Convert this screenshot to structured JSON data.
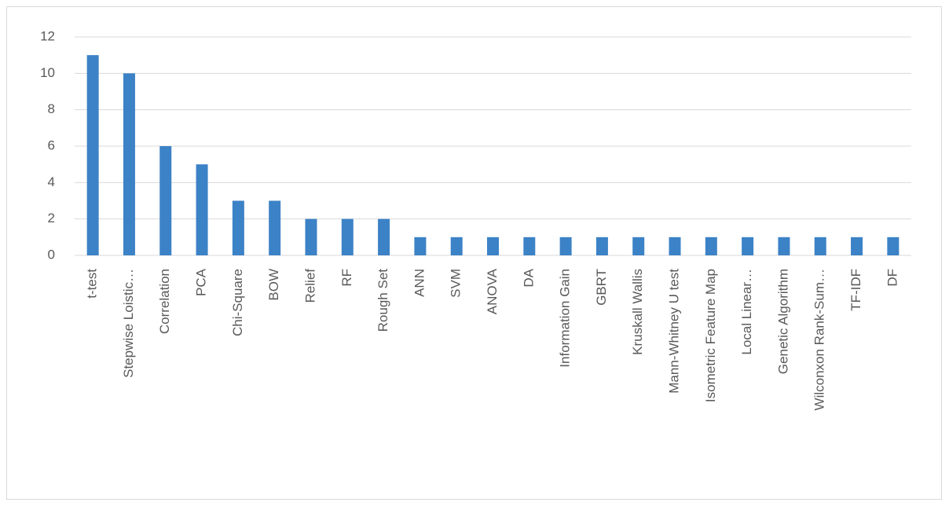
{
  "chart_data": {
    "type": "bar",
    "categories": [
      "t-test",
      "Stepwise Loistic…",
      "Correlation",
      "PCA",
      "Chi-Square",
      "BOW",
      "Relief",
      "RF",
      "Rough Set",
      "ANN",
      "SVM",
      "ANOVA",
      "DA",
      "Information Gain",
      "GBRT",
      "Kruskall Wallis",
      "Mann-Whitney U test",
      "Isometric Feature Map",
      "Local Linear…",
      "Genetic Algorithm",
      "Wilconxon Rank-Sum…",
      "TF-IDF",
      "DF"
    ],
    "values": [
      11,
      10,
      6,
      5,
      3,
      3,
      2,
      2,
      2,
      1,
      1,
      1,
      1,
      1,
      1,
      1,
      1,
      1,
      1,
      1,
      1,
      1,
      1
    ],
    "color": "#3c82c6",
    "ylim": [
      0,
      12
    ],
    "yticks": [
      0,
      2,
      4,
      6,
      8,
      10,
      12
    ],
    "grid": true
  }
}
